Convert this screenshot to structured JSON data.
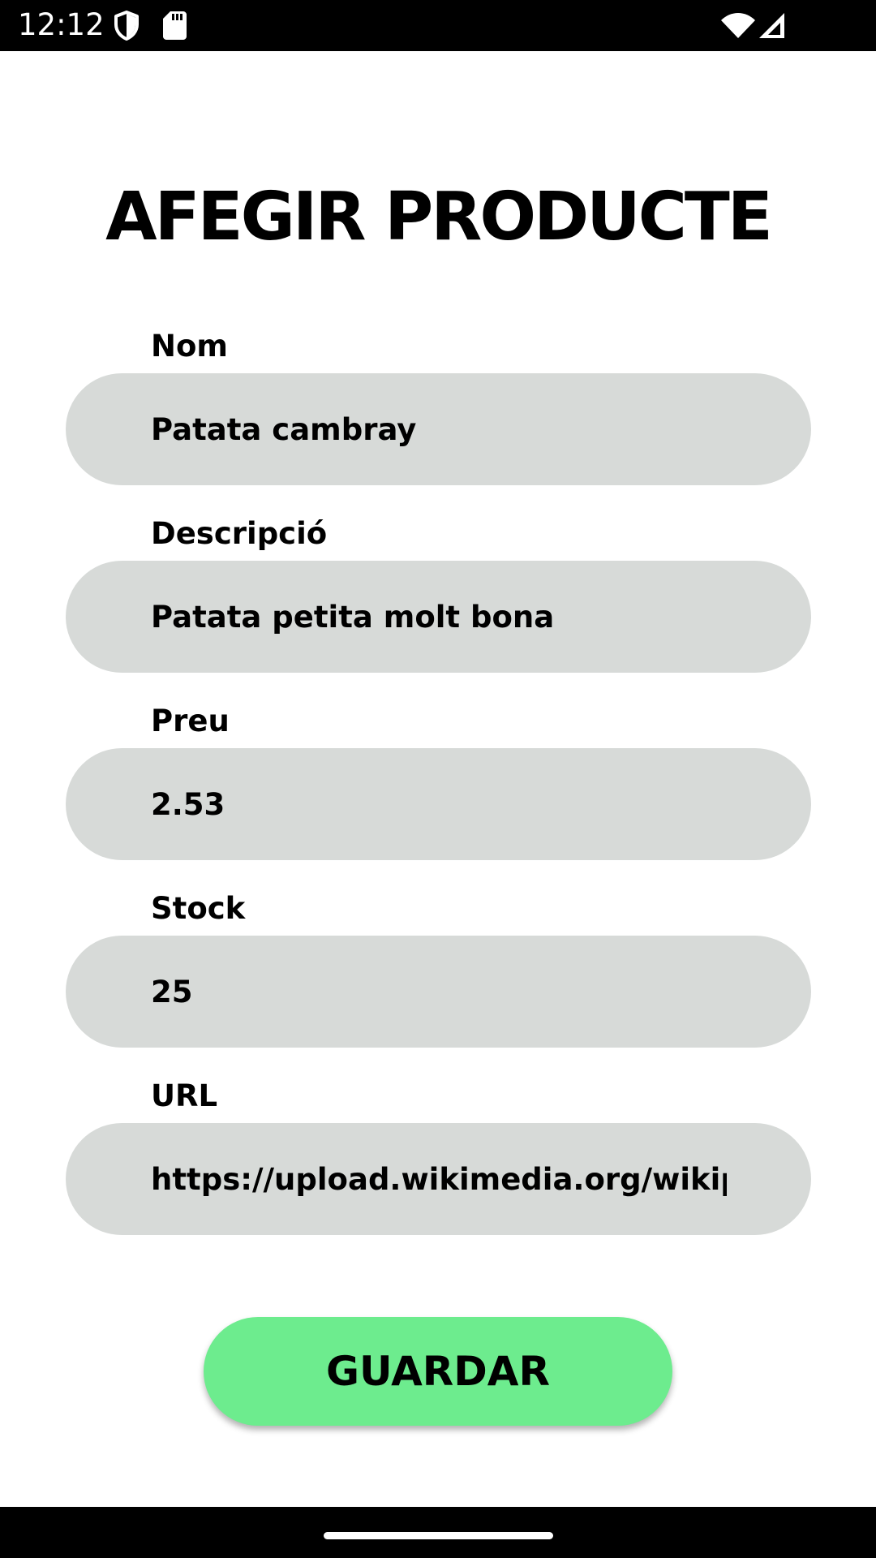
{
  "status_bar": {
    "time": "12:12",
    "icons": [
      "shield-icon",
      "sd-card-icon",
      "wifi-icon",
      "cell-signal-icon"
    ]
  },
  "page": {
    "title": "AFEGIR PRODUCTE"
  },
  "form": {
    "fields": [
      {
        "label": "Nom",
        "value": "Patata cambray"
      },
      {
        "label": "Descripció",
        "value": "Patata petita molt bona"
      },
      {
        "label": "Preu",
        "value": "2.53"
      },
      {
        "label": "Stock",
        "value": "25"
      },
      {
        "label": "URL",
        "value": "https://upload.wikimedia.org/wikipedia"
      }
    ],
    "save_label": "GUARDAR"
  },
  "colors": {
    "input_background": "#d7dad8",
    "button_background": "#6dec8e",
    "system_bars": "#000000"
  }
}
